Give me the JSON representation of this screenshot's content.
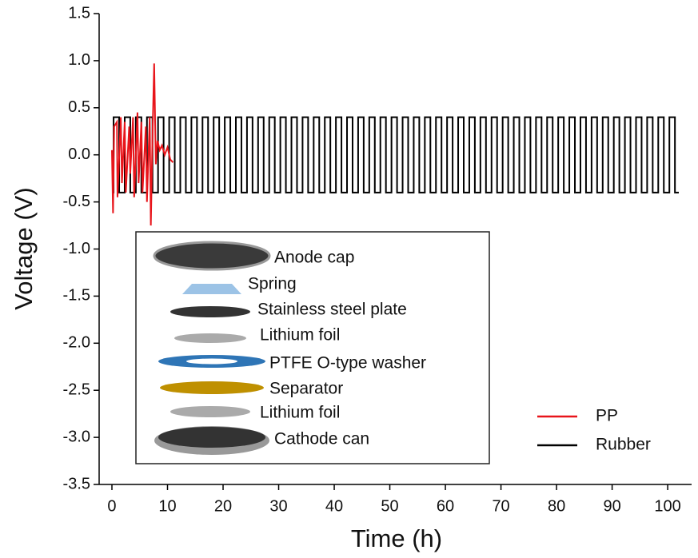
{
  "chart_data": {
    "type": "line",
    "xlabel": "Time (h)",
    "ylabel": "Voltage (V)",
    "xlim": [
      -2.3,
      104.3
    ],
    "ylim": [
      -3.5,
      1.5
    ],
    "xticks": [
      0,
      10,
      20,
      30,
      40,
      50,
      60,
      70,
      80,
      90,
      100
    ],
    "yticks": [
      1.5,
      {
        "value": 1.0,
        "label": "1.0"
      },
      0.5,
      {
        "value": 0.0,
        "label": "0.0"
      },
      -0.5,
      {
        "value": -1.0,
        "label": "-1.0"
      },
      -1.5,
      {
        "value": -2.0,
        "label": "-2.0"
      },
      -2.5,
      {
        "value": -3.0,
        "label": "-3.0"
      },
      -3.5
    ],
    "legend": "lower right",
    "series": [
      {
        "name": "PP",
        "color": "#e8151b",
        "x": [
          0,
          0.2,
          0.4,
          0.9,
          1.0,
          1.6,
          1.8,
          2.3,
          2.5,
          3.1,
          3.3,
          3.8,
          4.0,
          4.6,
          4.8,
          5.3,
          5.5,
          6.1,
          6.3,
          6.8,
          7.0,
          7.3,
          7.6,
          7.9,
          8.2,
          8.6,
          9.0,
          9.5,
          10,
          10.5,
          11
        ],
        "values": [
          0.05,
          -0.62,
          0.3,
          0.35,
          -0.45,
          0.4,
          -0.3,
          0.35,
          -0.4,
          0.3,
          -0.2,
          0.4,
          -0.45,
          0.45,
          -0.3,
          0.35,
          -0.4,
          0.3,
          -0.5,
          0.4,
          -0.75,
          0.2,
          0.97,
          -0.1,
          0.15,
          0.05,
          0.1,
          0.0,
          0.08,
          -0.05,
          -0.08
        ]
      },
      {
        "name": "Rubber",
        "color": "#000000",
        "x": [
          0,
          0.3,
          0.3,
          1.3,
          1.3,
          2.3,
          2.3,
          3.3,
          3.3,
          4.3,
          4.3,
          5.3,
          5.3,
          6.3,
          6.3,
          7.3,
          7.3,
          8.3,
          8.3,
          9.3,
          9.3,
          10.3,
          10.3,
          11.3,
          11.3,
          12.3,
          12.3,
          13.3,
          13.3,
          14.3,
          14.3,
          15.3,
          15.3,
          16.3,
          16.3,
          17.3,
          17.3,
          18.3,
          18.3,
          19.3,
          19.3,
          20.3,
          20.3,
          21.3,
          21.3,
          22.3,
          22.3,
          23.3,
          23.3,
          24.3,
          24.3,
          25.3,
          25.3,
          26.3,
          26.3,
          27.3,
          27.3,
          28.3,
          28.3,
          29.3,
          29.3,
          30.3,
          30.3,
          31.3,
          31.3,
          32.3,
          32.3,
          33.3,
          33.3,
          34.3,
          34.3,
          35.3,
          35.3,
          36.3,
          36.3,
          37.3,
          37.3,
          38.3,
          38.3,
          39.3,
          39.3,
          40.3,
          40.3,
          41.3,
          41.3,
          42.3,
          42.3,
          43.3,
          43.3,
          44.3,
          44.3,
          45.3,
          45.3,
          46.3,
          46.3,
          47.3,
          47.3,
          48.3,
          48.3,
          49.3,
          49.3,
          50.3,
          50.3,
          51.3,
          51.3,
          52.3,
          52.3,
          53.3,
          53.3,
          54.3,
          54.3,
          55.3,
          55.3,
          56.3,
          56.3,
          57.3,
          57.3,
          58.3,
          58.3,
          59.3,
          59.3,
          60.3,
          60.3,
          61.3,
          61.3,
          62.3,
          62.3,
          63.3,
          63.3,
          64.3,
          64.3,
          65.3,
          65.3,
          66.3,
          66.3,
          67.3,
          67.3,
          68.3,
          68.3,
          69.3,
          69.3,
          70.3,
          70.3,
          71.3,
          71.3,
          72.3,
          72.3,
          73.3,
          73.3,
          74.3,
          74.3,
          75.3,
          75.3,
          76.3,
          76.3,
          77.3,
          77.3,
          78.3,
          78.3,
          79.3,
          79.3,
          80.3,
          80.3,
          81.3,
          81.3,
          82.3,
          82.3,
          83.3,
          83.3,
          84.3,
          84.3,
          85.3,
          85.3,
          86.3,
          86.3,
          87.3,
          87.3,
          88.3,
          88.3,
          89.3,
          89.3,
          90.3,
          90.3,
          91.3,
          91.3,
          92.3,
          92.3,
          93.3,
          93.3,
          94.3,
          94.3,
          95.3,
          95.3,
          96.3,
          96.3,
          97.3,
          97.3,
          98.3,
          98.3,
          99.3,
          99.3,
          100.3,
          100.3,
          101.3,
          101.3,
          102
        ],
        "values": [
          -0.4,
          -0.4,
          0.4,
          0.4,
          -0.4,
          -0.4,
          0.4,
          0.4,
          -0.4,
          -0.4,
          0.4,
          0.4,
          -0.4,
          -0.4,
          0.4,
          0.4,
          -0.4,
          -0.4,
          0.4,
          0.4,
          -0.4,
          -0.4,
          0.4,
          0.4,
          -0.4,
          -0.4,
          0.4,
          0.4,
          -0.4,
          -0.4,
          0.4,
          0.4,
          -0.4,
          -0.4,
          0.4,
          0.4,
          -0.4,
          -0.4,
          0.4,
          0.4,
          -0.4,
          -0.4,
          0.4,
          0.4,
          -0.4,
          -0.4,
          0.4,
          0.4,
          -0.4,
          -0.4,
          0.4,
          0.4,
          -0.4,
          -0.4,
          0.4,
          0.4,
          -0.4,
          -0.4,
          0.4,
          0.4,
          -0.4,
          -0.4,
          0.4,
          0.4,
          -0.4,
          -0.4,
          0.4,
          0.4,
          -0.4,
          -0.4,
          0.4,
          0.4,
          -0.4,
          -0.4,
          0.4,
          0.4,
          -0.4,
          -0.4,
          0.4,
          0.4,
          -0.4,
          -0.4,
          0.4,
          0.4,
          -0.4,
          -0.4,
          0.4,
          0.4,
          -0.4,
          -0.4,
          0.4,
          0.4,
          -0.4,
          -0.4,
          0.4,
          0.4,
          -0.4,
          -0.4,
          0.4,
          0.4,
          -0.4,
          -0.4,
          0.4,
          0.4,
          -0.4,
          -0.4,
          0.4,
          0.4,
          -0.4,
          -0.4,
          0.4,
          0.4,
          -0.4,
          -0.4,
          0.4,
          0.4,
          -0.4,
          -0.4,
          0.4,
          0.4,
          -0.4,
          -0.4,
          0.4,
          0.4,
          -0.4,
          -0.4,
          0.4,
          0.4,
          -0.4,
          -0.4,
          0.4,
          0.4,
          -0.4,
          -0.4,
          0.4,
          0.4,
          -0.4,
          -0.4,
          0.4,
          0.4,
          -0.4,
          -0.4,
          0.4,
          0.4,
          -0.4,
          -0.4,
          0.4,
          0.4,
          -0.4,
          -0.4,
          0.4,
          0.4,
          -0.4,
          -0.4,
          0.4,
          0.4,
          -0.4,
          -0.4,
          0.4,
          0.4,
          -0.4,
          -0.4,
          0.4,
          0.4,
          -0.4,
          -0.4,
          0.4,
          0.4,
          -0.4,
          -0.4,
          0.4,
          0.4,
          -0.4,
          -0.4,
          0.4,
          0.4,
          -0.4,
          -0.4,
          0.4,
          0.4,
          -0.4,
          -0.4,
          0.4,
          0.4,
          -0.4,
          -0.4,
          0.4,
          0.4,
          -0.4,
          -0.4,
          0.4,
          0.4,
          -0.4,
          -0.4,
          0.4,
          0.4,
          -0.4,
          -0.4,
          0.4,
          0.4,
          -0.4,
          -0.4,
          0.4,
          0.4,
          -0.4,
          -0.4
        ]
      }
    ],
    "inset": {
      "labels": [
        "Anode cap",
        "Spring",
        "Stainless steel plate",
        "Lithium foil",
        "PTFE O-type washer",
        "Separator",
        "Lithium foil",
        "Cathode can"
      ]
    }
  }
}
